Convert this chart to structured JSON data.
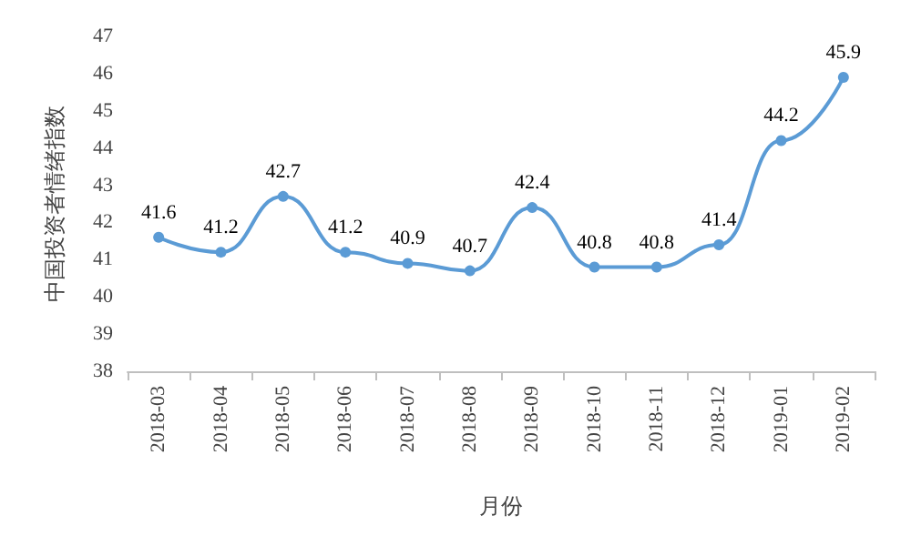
{
  "chart_data": {
    "type": "line",
    "xlabel": "月份",
    "ylabel": "中国投资者情绪指数",
    "categories": [
      "2018-03",
      "2018-04",
      "2018-05",
      "2018-06",
      "2018-07",
      "2018-08",
      "2018-09",
      "2018-10",
      "2018-11",
      "2018-12",
      "2019-01",
      "2019-02"
    ],
    "series": [
      {
        "color": "#5b9bd5",
        "values": [
          41.6,
          41.2,
          42.7,
          41.2,
          40.9,
          40.7,
          42.4,
          40.8,
          40.8,
          41.4,
          44.2,
          45.9
        ]
      }
    ],
    "ylim": [
      38,
      47
    ],
    "yticks": [
      38,
      39,
      40,
      41,
      42,
      43,
      44,
      45,
      46,
      47
    ],
    "grid": false,
    "marker": "circle",
    "line_style": "solid",
    "data_labels": true
  }
}
